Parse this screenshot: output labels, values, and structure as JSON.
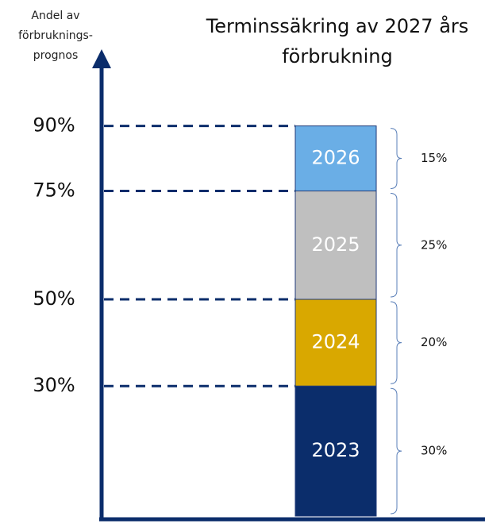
{
  "chart_data": {
    "type": "stacked_bar",
    "title": [
      "Terminssäkring av 2027 års",
      "förbrukning"
    ],
    "ylabel": [
      "Andel av",
      "förbruknings-",
      "prognos"
    ],
    "series": [
      {
        "name": "2023",
        "color": "#0b2d6b",
        "values": [
          30
        ],
        "value_labels": [
          "30%"
        ]
      },
      {
        "name": "2024",
        "color": "#d9a800",
        "values": [
          20
        ],
        "value_labels": [
          "20%"
        ]
      },
      {
        "name": "2025",
        "color": "#bfbfbf",
        "values": [
          25
        ],
        "value_labels": [
          "25%"
        ]
      },
      {
        "name": "2026",
        "color": "#6aaee6",
        "values": [
          15
        ],
        "value_labels": [
          "15%"
        ]
      }
    ],
    "ylim": [
      0,
      100
    ],
    "yticks": [
      {
        "value": 30,
        "label": "30%"
      },
      {
        "value": 50,
        "label": "50%"
      },
      {
        "value": 75,
        "label": "75%"
      },
      {
        "value": 90,
        "label": "90%"
      }
    ]
  }
}
